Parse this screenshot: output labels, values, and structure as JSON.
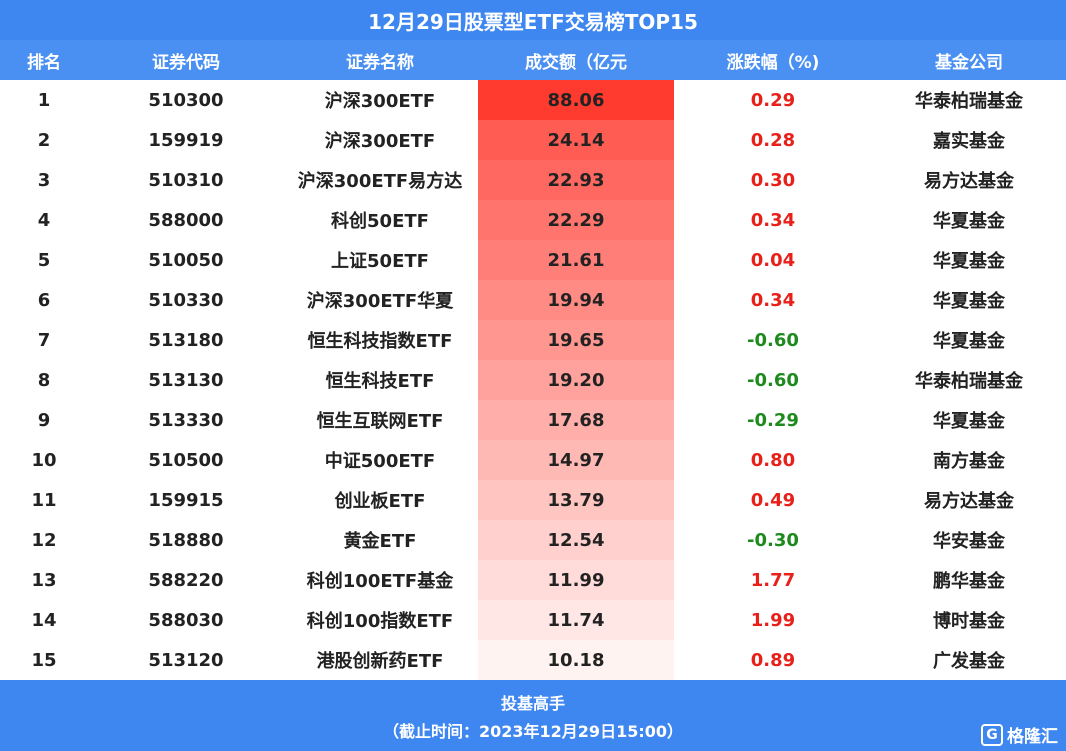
{
  "title": "12月29日股票型ETF交易榜TOP15",
  "headers": {
    "rank": "排名",
    "code": "证券代码",
    "name": "证券名称",
    "volume": "成交额（亿元",
    "change": "涨跌幅（%)",
    "fund": "基金公司"
  },
  "colors": {
    "header_bg": "#3e86f0",
    "up": "#e8201a",
    "down": "#1d8a1d",
    "volume_max": "#ff3b30",
    "volume_min": "#fff3f2"
  },
  "rows": [
    {
      "rank": "1",
      "code": "510300",
      "name": "沪深300ETF",
      "volume": "88.06",
      "change": "0.29",
      "dir": "up",
      "fund": "华泰柏瑞基金"
    },
    {
      "rank": "2",
      "code": "159919",
      "name": "沪深300ETF",
      "volume": "24.14",
      "change": "0.28",
      "dir": "up",
      "fund": "嘉实基金"
    },
    {
      "rank": "3",
      "code": "510310",
      "name": "沪深300ETF易方达",
      "volume": "22.93",
      "change": "0.30",
      "dir": "up",
      "fund": "易方达基金"
    },
    {
      "rank": "4",
      "code": "588000",
      "name": "科创50ETF",
      "volume": "22.29",
      "change": "0.34",
      "dir": "up",
      "fund": "华夏基金"
    },
    {
      "rank": "5",
      "code": "510050",
      "name": "上证50ETF",
      "volume": "21.61",
      "change": "0.04",
      "dir": "up",
      "fund": "华夏基金"
    },
    {
      "rank": "6",
      "code": "510330",
      "name": "沪深300ETF华夏",
      "volume": "19.94",
      "change": "0.34",
      "dir": "up",
      "fund": "华夏基金"
    },
    {
      "rank": "7",
      "code": "513180",
      "name": "恒生科技指数ETF",
      "volume": "19.65",
      "change": "-0.60",
      "dir": "down",
      "fund": "华夏基金"
    },
    {
      "rank": "8",
      "code": "513130",
      "name": "恒生科技ETF",
      "volume": "19.20",
      "change": "-0.60",
      "dir": "down",
      "fund": "华泰柏瑞基金"
    },
    {
      "rank": "9",
      "code": "513330",
      "name": "恒生互联网ETF",
      "volume": "17.68",
      "change": "-0.29",
      "dir": "down",
      "fund": "华夏基金"
    },
    {
      "rank": "10",
      "code": "510500",
      "name": "中证500ETF",
      "volume": "14.97",
      "change": "0.80",
      "dir": "up",
      "fund": "南方基金"
    },
    {
      "rank": "11",
      "code": "159915",
      "name": "创业板ETF",
      "volume": "13.79",
      "change": "0.49",
      "dir": "up",
      "fund": "易方达基金"
    },
    {
      "rank": "12",
      "code": "518880",
      "name": "黄金ETF",
      "volume": "12.54",
      "change": "-0.30",
      "dir": "down",
      "fund": "华安基金"
    },
    {
      "rank": "13",
      "code": "588220",
      "name": "科创100ETF基金",
      "volume": "11.99",
      "change": "1.77",
      "dir": "up",
      "fund": "鹏华基金"
    },
    {
      "rank": "14",
      "code": "588030",
      "name": "科创100指数ETF",
      "volume": "11.74",
      "change": "1.99",
      "dir": "up",
      "fund": "博时基金"
    },
    {
      "rank": "15",
      "code": "513120",
      "name": "港股创新药ETF",
      "volume": "10.18",
      "change": "0.89",
      "dir": "up",
      "fund": "广发基金"
    }
  ],
  "footer": {
    "line1": "投基高手",
    "line2": "（截止时间：2023年12月29日15:00）",
    "logo_text": "格隆汇",
    "logo_mark": "G"
  }
}
